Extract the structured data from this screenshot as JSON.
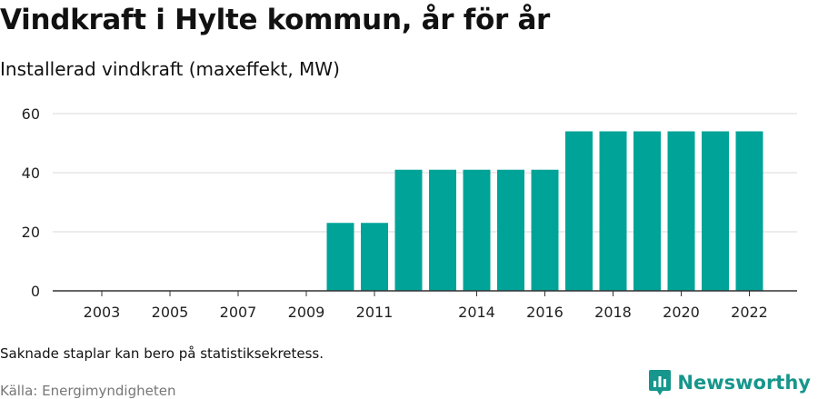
{
  "title": "Vindkraft i Hylte kommun, år för år",
  "subtitle": "Installerad vindkraft (maxeffekt, MW)",
  "note": "Saknade staplar kan bero på statistiksekretess.",
  "source": "Källa: Energimyndigheten",
  "brand": {
    "name": "Newsworthy",
    "icon": "newsworthy-logo-icon",
    "color": "#16968c"
  },
  "colors": {
    "bar": "#00a398",
    "grid": "#d9d9d9",
    "axis": "#333333"
  },
  "chart_data": {
    "type": "bar",
    "categories": [
      "2003",
      "2004",
      "2005",
      "2006",
      "2007",
      "2008",
      "2009",
      "2010",
      "2011",
      "2012",
      "2013",
      "2014",
      "2015",
      "2016",
      "2017",
      "2018",
      "2019",
      "2020",
      "2021",
      "2022"
    ],
    "values": [
      0,
      0,
      0,
      0,
      0,
      0,
      0,
      23,
      23,
      41,
      41,
      41,
      41,
      41,
      54,
      54,
      54,
      54,
      54,
      54
    ],
    "x_tick_labels": [
      "2003",
      "2005",
      "2007",
      "2009",
      "2011",
      "2014",
      "2016",
      "2018",
      "2020",
      "2022"
    ],
    "y_ticks": [
      0,
      20,
      40,
      60
    ],
    "ylim": [
      0,
      60
    ],
    "grid": true,
    "legend": "none"
  }
}
